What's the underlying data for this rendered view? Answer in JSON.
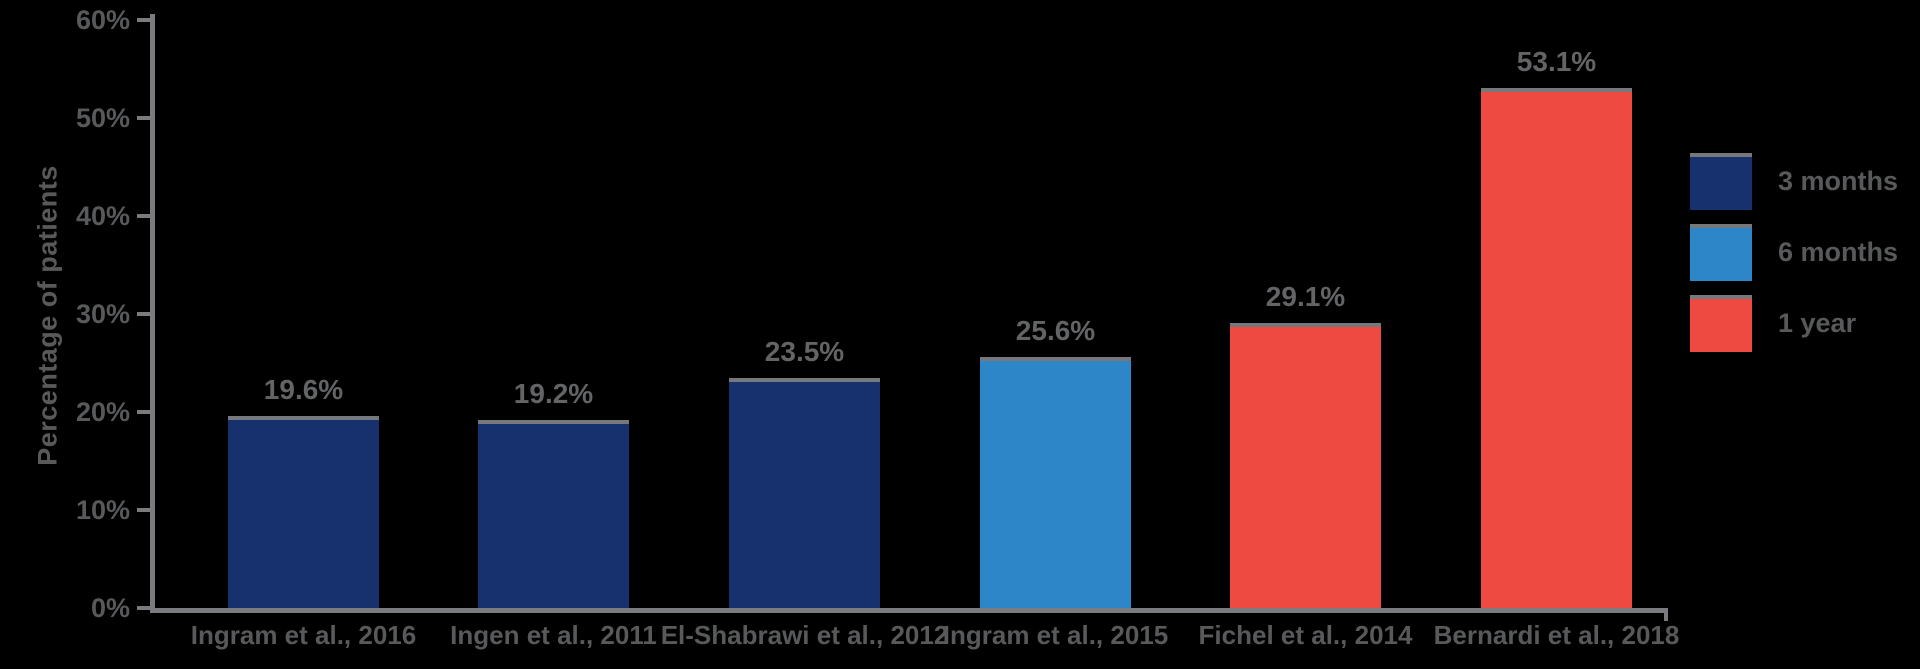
{
  "chart_data": {
    "type": "bar",
    "title": "",
    "ylabel": "Percentage of patients",
    "xlabel": "",
    "ylim": [
      0,
      60
    ],
    "yticks": [
      {
        "value": 0,
        "label": "0%"
      },
      {
        "value": 10,
        "label": "10%"
      },
      {
        "value": 20,
        "label": "20%"
      },
      {
        "value": 30,
        "label": "30%"
      },
      {
        "value": 40,
        "label": "40%"
      },
      {
        "value": 50,
        "label": "50%"
      },
      {
        "value": 60,
        "label": "60%"
      }
    ],
    "categories": [
      "Ingram et al., 2016",
      "Ingen et al., 2011",
      "El-Shabrawi et al., 2012",
      "Ingram et al., 2015",
      "Fichel et al., 2014",
      "Bernardi et al., 2018"
    ],
    "values": [
      19.6,
      19.2,
      23.5,
      25.6,
      29.1,
      53.1
    ],
    "value_labels": [
      "19.6%",
      "19.2%",
      "23.5%",
      "25.6%",
      "29.1%",
      "53.1%"
    ],
    "bar_groups": [
      "3 months",
      "3 months",
      "3 months",
      "6 months",
      "1 year",
      "1 year"
    ],
    "grid": "off",
    "legend_position": "right"
  },
  "legend": {
    "items": [
      {
        "label": "3 months",
        "color": "#17316e"
      },
      {
        "label": "6 months",
        "color": "#2d86c7"
      },
      {
        "label": "1 year",
        "color": "#ef4a41"
      }
    ]
  },
  "colors": {
    "background": "#000000",
    "axis": "#7a7b7e",
    "tick_text": "#58595b",
    "data_label_text": "#636466",
    "bar_top_edge": "#77787b"
  }
}
